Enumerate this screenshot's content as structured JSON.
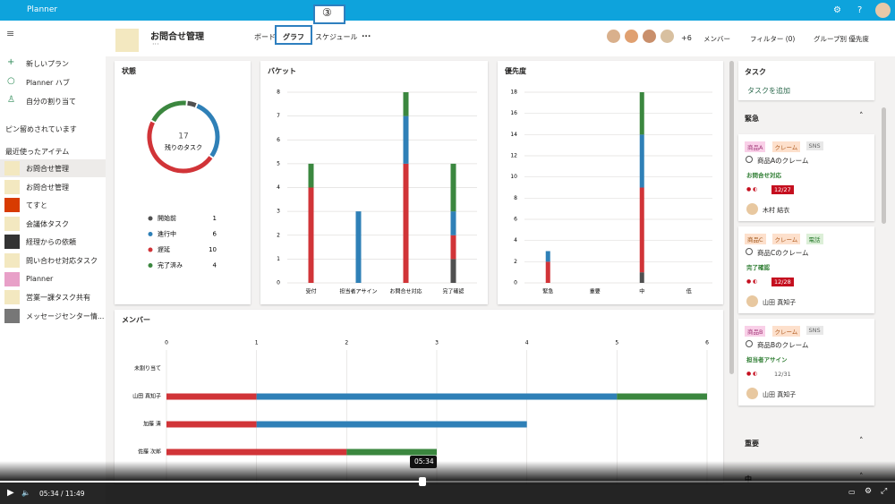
{
  "app": {
    "name": "Planner"
  },
  "nav": {
    "items": [
      "新しいプラン",
      "Planner ハブ",
      "自分の割り当て"
    ],
    "pinned": "ピン留めされています",
    "recent_header": "最近使ったアイテム",
    "recent": [
      "お問合せ管理",
      "お問合せ管理",
      "てすと",
      "会議体タスク",
      "経理からの依頼",
      "問い合わせ対応タスク",
      "Planner",
      "営業一課タスク共有",
      "メッセージセンター情..."
    ]
  },
  "header": {
    "plan": "お問合せ管理",
    "tabs": [
      "ボード",
      "グラフ",
      "スケジュール"
    ],
    "more": "...",
    "members_extra": "+6",
    "menu": [
      "メンバー",
      "フィルター (0)",
      "グループ別 優先度"
    ]
  },
  "annotation": "③",
  "status": {
    "title": "状態",
    "type": "donut",
    "center_value": 17,
    "center_label": "残りのタスク",
    "categories": [
      "開始前",
      "進行中",
      "遅延",
      "完了済み"
    ],
    "values": [
      1,
      6,
      10,
      4
    ],
    "colors": [
      "#505050",
      "#2f80b7",
      "#d13438",
      "#3b873f"
    ]
  },
  "bucket": {
    "title": "バケット",
    "type": "bar",
    "categories": [
      "受付",
      "担当者アサイン",
      "お問合せ対応",
      "完了確認"
    ],
    "series": [
      {
        "name": "開始前",
        "color": "#505050",
        "values": [
          0,
          0,
          0,
          1
        ]
      },
      {
        "name": "遅延",
        "color": "#d13438",
        "values": [
          4,
          0,
          5,
          1
        ]
      },
      {
        "name": "進行中",
        "color": "#2f80b7",
        "values": [
          0,
          3,
          2,
          1
        ]
      },
      {
        "name": "完了済み",
        "color": "#3b873f",
        "values": [
          1,
          0,
          1,
          2
        ]
      }
    ],
    "ylim": [
      0,
      8
    ],
    "yticks": [
      0,
      1,
      2,
      3,
      4,
      5,
      6,
      7,
      8
    ]
  },
  "priority": {
    "title": "優先度",
    "type": "bar",
    "categories": [
      "緊急",
      "重要",
      "中",
      "低"
    ],
    "series": [
      {
        "name": "開始前",
        "color": "#505050",
        "values": [
          0,
          0,
          1,
          0
        ]
      },
      {
        "name": "遅延",
        "color": "#d13438",
        "values": [
          2,
          0,
          8,
          0
        ]
      },
      {
        "name": "進行中",
        "color": "#2f80b7",
        "values": [
          1,
          0,
          5,
          0
        ]
      },
      {
        "name": "完了済み",
        "color": "#3b873f",
        "values": [
          0,
          0,
          4,
          0
        ]
      }
    ],
    "ylim": [
      0,
      18
    ],
    "yticks": [
      0,
      2,
      4,
      6,
      8,
      10,
      12,
      14,
      16,
      18
    ]
  },
  "members": {
    "title": "メンバー",
    "type": "barh",
    "categories": [
      "未割り当て",
      "山田 真知子",
      "加藤 清",
      "佐藤 次郎"
    ],
    "series": [
      {
        "name": "遅延",
        "color": "#d13438",
        "values": [
          0,
          1,
          1,
          2
        ]
      },
      {
        "name": "進行中",
        "color": "#2f80b7",
        "values": [
          0,
          4,
          3,
          0
        ]
      },
      {
        "name": "完了済み",
        "color": "#3b873f",
        "values": [
          0,
          1,
          0,
          1
        ]
      }
    ],
    "xlim": [
      0,
      6
    ],
    "xticks": [
      0,
      1,
      2,
      3,
      4,
      5,
      6
    ]
  },
  "tasks": {
    "title": "タスク",
    "add": "タスクを追加",
    "groups": [
      {
        "name": "緊急",
        "cards": [
          {
            "labels": [
              "商品A",
              "クレーム",
              "SNS"
            ],
            "title": "商品Aのクレーム",
            "bucket": "お問合せ対応",
            "due": "12/27",
            "assignee": "木村 結衣"
          },
          {
            "labels": [
              "商品C",
              "クレーム",
              "電話"
            ],
            "title": "商品Cのクレーム",
            "bucket": "完了確認",
            "due": "12/28",
            "assignee": "山田 真知子"
          },
          {
            "labels": [
              "商品B",
              "クレーム",
              "SNS"
            ],
            "title": "商品Bのクレーム",
            "bucket": "担当者アサイン",
            "due": "12/31",
            "assignee": "山田 真知子"
          }
        ]
      },
      {
        "name": "重要"
      },
      {
        "name": "中"
      }
    ]
  },
  "player": {
    "time": "05:34 / 11:49",
    "tooltip": "05:34"
  }
}
